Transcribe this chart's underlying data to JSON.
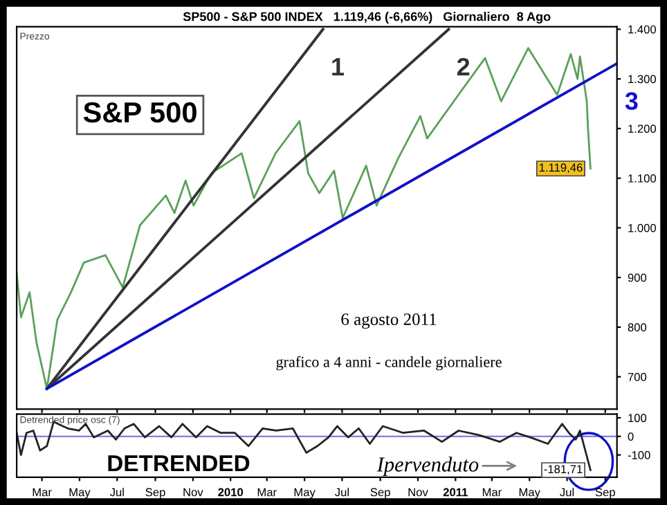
{
  "chart_data": [
    {
      "type": "line",
      "title": "SP500 - S&P 500 INDEX   1.119,46 (-6,66%)   Giornaliero  8 Ago",
      "annotations": [
        "Prezzo",
        "S&P 500",
        "6 agosto 2011",
        "grafico a 4 anni - candele giornaliere"
      ],
      "xlim": [
        "2009-01-19",
        "2011-09-20"
      ],
      "ylim": [
        635,
        1405
      ],
      "yticks": [
        {
          "value": 700,
          "label": "700"
        },
        {
          "value": 800,
          "label": "800"
        },
        {
          "value": 900,
          "label": "900"
        },
        {
          "value": 1000,
          "label": "1.000"
        },
        {
          "value": 1100,
          "label": "1.100"
        },
        {
          "value": 1200,
          "label": "1.200"
        },
        {
          "value": 1300,
          "label": "1.300"
        },
        {
          "value": 1400,
          "label": "1.400"
        }
      ],
      "xticks": [
        {
          "value": "2009-03-01",
          "label": null
        },
        {
          "value": "2009-05-01",
          "label": null
        },
        {
          "value": "2009-07-01",
          "label": null
        },
        {
          "value": "2009-09-01",
          "label": null
        },
        {
          "value": "2009-11-01",
          "label": null
        },
        {
          "value": "2010-01-01",
          "label": null
        },
        {
          "value": "2010-03-01",
          "label": null
        },
        {
          "value": "2010-05-01",
          "label": null
        },
        {
          "value": "2010-07-01",
          "label": null
        },
        {
          "value": "2010-09-01",
          "label": null
        },
        {
          "value": "2010-11-01",
          "label": null
        },
        {
          "value": "2011-01-01",
          "label": null
        },
        {
          "value": "2011-03-01",
          "label": null
        },
        {
          "value": "2011-05-01",
          "label": null
        },
        {
          "value": "2011-07-01",
          "label": null
        },
        {
          "value": "2011-09-01",
          "label": null
        }
      ],
      "tick_labels": "y",
      "grid": false,
      "legend": false,
      "series": [
        {
          "color": "#5aa05a",
          "x": [
            "2009-01-19",
            "2009-01-26",
            "2009-02-09",
            "2009-02-20",
            "2009-03-09",
            "2009-03-26",
            "2009-04-17",
            "2009-05-08",
            "2009-06-12",
            "2009-07-10",
            "2009-08-07",
            "2009-09-18",
            "2009-10-02",
            "2009-10-20",
            "2009-11-02",
            "2009-12-01",
            "2010-01-19",
            "2010-02-08",
            "2010-03-15",
            "2010-04-23",
            "2010-05-07",
            "2010-05-25",
            "2010-06-18",
            "2010-07-02",
            "2010-08-09",
            "2010-08-26",
            "2010-09-30",
            "2010-11-05",
            "2010-11-16",
            "2010-12-31",
            "2011-02-18",
            "2011-03-16",
            "2011-04-29",
            "2011-06-15",
            "2011-07-07",
            "2011-07-18",
            "2011-07-22",
            "2011-08-02",
            "2011-08-04",
            "2011-08-08"
          ],
          "values": [
            909,
            820,
            870,
            770,
            676,
            815,
            870,
            930,
            945,
            880,
            1005,
            1065,
            1030,
            1095,
            1045,
            1110,
            1150,
            1060,
            1150,
            1215,
            1110,
            1070,
            1115,
            1020,
            1125,
            1045,
            1140,
            1225,
            1180,
            1258,
            1342,
            1255,
            1362,
            1268,
            1350,
            1300,
            1345,
            1255,
            1200,
            1119.46
          ],
          "value_labels": [
            null,
            null,
            null,
            null,
            null,
            null,
            null,
            null,
            null,
            null,
            null,
            null,
            null,
            null,
            null,
            null,
            null,
            null,
            null,
            null,
            null,
            null,
            null,
            null,
            null,
            null,
            null,
            null,
            null,
            null,
            null,
            null,
            null,
            null,
            null,
            null,
            null,
            null,
            null,
            "1.119,46"
          ]
        },
        {
          "name": "1",
          "color": "#333333",
          "x": [
            "2009-03-09",
            "2010-05-31"
          ],
          "values": [
            676,
            1400
          ]
        },
        {
          "name": "2",
          "color": "#333333",
          "x": [
            "2009-03-09",
            "2010-12-21"
          ],
          "values": [
            676,
            1400
          ]
        },
        {
          "name": "3",
          "color": "#1010c8",
          "x": [
            "2009-03-09",
            "2011-09-20"
          ],
          "values": [
            676,
            1331
          ]
        }
      ]
    },
    {
      "type": "line",
      "annotations": [
        "Detrended price osc (7)",
        "DETRENDED",
        "Ipervenduto"
      ],
      "xlim": [
        "2009-01-19",
        "2011-09-20"
      ],
      "ylim": [
        -220,
        120
      ],
      "yticks": [
        100,
        0,
        -100
      ],
      "xticks": [
        {
          "value": "2009-03-01",
          "label": "Mar"
        },
        {
          "value": "2009-05-01",
          "label": "May"
        },
        {
          "value": "2009-07-01",
          "label": "Jul"
        },
        {
          "value": "2009-09-01",
          "label": "Sep"
        },
        {
          "value": "2009-11-01",
          "label": "Nov"
        },
        {
          "value": "2010-01-01",
          "label": "2010"
        },
        {
          "value": "2010-03-01",
          "label": "Mar"
        },
        {
          "value": "2010-05-01",
          "label": "May"
        },
        {
          "value": "2010-07-01",
          "label": "Jul"
        },
        {
          "value": "2010-09-01",
          "label": "Sep"
        },
        {
          "value": "2010-11-01",
          "label": "Nov"
        },
        {
          "value": "2011-01-01",
          "label": "2011"
        },
        {
          "value": "2011-03-01",
          "label": "Mar"
        },
        {
          "value": "2011-05-01",
          "label": "May"
        },
        {
          "value": "2011-07-01",
          "label": "Jul"
        },
        {
          "value": "2011-09-01",
          "label": "Sep"
        }
      ],
      "grid": false,
      "legend": false,
      "ref_lines": [
        {
          "axis": "y",
          "value": 0,
          "color": "#8080e0"
        }
      ],
      "series": [
        {
          "color": "#222222",
          "x": [
            "2009-01-19",
            "2009-01-26",
            "2009-02-04",
            "2009-02-15",
            "2009-02-26",
            "2009-03-09",
            "2009-03-20",
            "2009-03-27",
            "2009-04-12",
            "2009-04-30",
            "2009-05-11",
            "2009-05-24",
            "2009-06-16",
            "2009-06-29",
            "2009-07-13",
            "2009-07-28",
            "2009-08-15",
            "2009-09-07",
            "2009-09-27",
            "2009-10-15",
            "2009-11-06",
            "2009-11-24",
            "2009-12-16",
            "2010-01-08",
            "2010-01-30",
            "2010-02-22",
            "2010-03-16",
            "2010-04-12",
            "2010-05-04",
            "2010-05-22",
            "2010-06-09",
            "2010-06-23",
            "2010-07-11",
            "2010-07-28",
            "2010-08-15",
            "2010-09-05",
            "2010-10-08",
            "2010-11-11",
            "2010-12-10",
            "2011-01-06",
            "2011-02-08",
            "2011-03-14",
            "2011-04-10",
            "2011-05-02",
            "2011-05-31",
            "2011-06-23",
            "2011-07-04",
            "2011-07-15",
            "2011-07-22",
            "2011-08-08"
          ],
          "values": [
            19,
            -100,
            19,
            31,
            -76,
            -52,
            79,
            67,
            43,
            31,
            67,
            -5,
            31,
            -17,
            43,
            67,
            -5,
            55,
            -5,
            67,
            -5,
            55,
            19,
            19,
            -52,
            43,
            31,
            43,
            -88,
            -52,
            -5,
            55,
            -5,
            43,
            -40,
            55,
            19,
            31,
            -29,
            31,
            7,
            -29,
            19,
            -5,
            -40,
            67,
            19,
            -17,
            31,
            -181.71
          ],
          "value_labels": [
            null,
            null,
            null,
            null,
            null,
            null,
            null,
            null,
            null,
            null,
            null,
            null,
            null,
            null,
            null,
            null,
            null,
            null,
            null,
            null,
            null,
            null,
            null,
            null,
            null,
            null,
            null,
            null,
            null,
            null,
            null,
            null,
            null,
            null,
            null,
            null,
            null,
            null,
            null,
            null,
            null,
            null,
            null,
            null,
            null,
            null,
            null,
            null,
            null,
            "-181,71"
          ]
        }
      ]
    }
  ]
}
